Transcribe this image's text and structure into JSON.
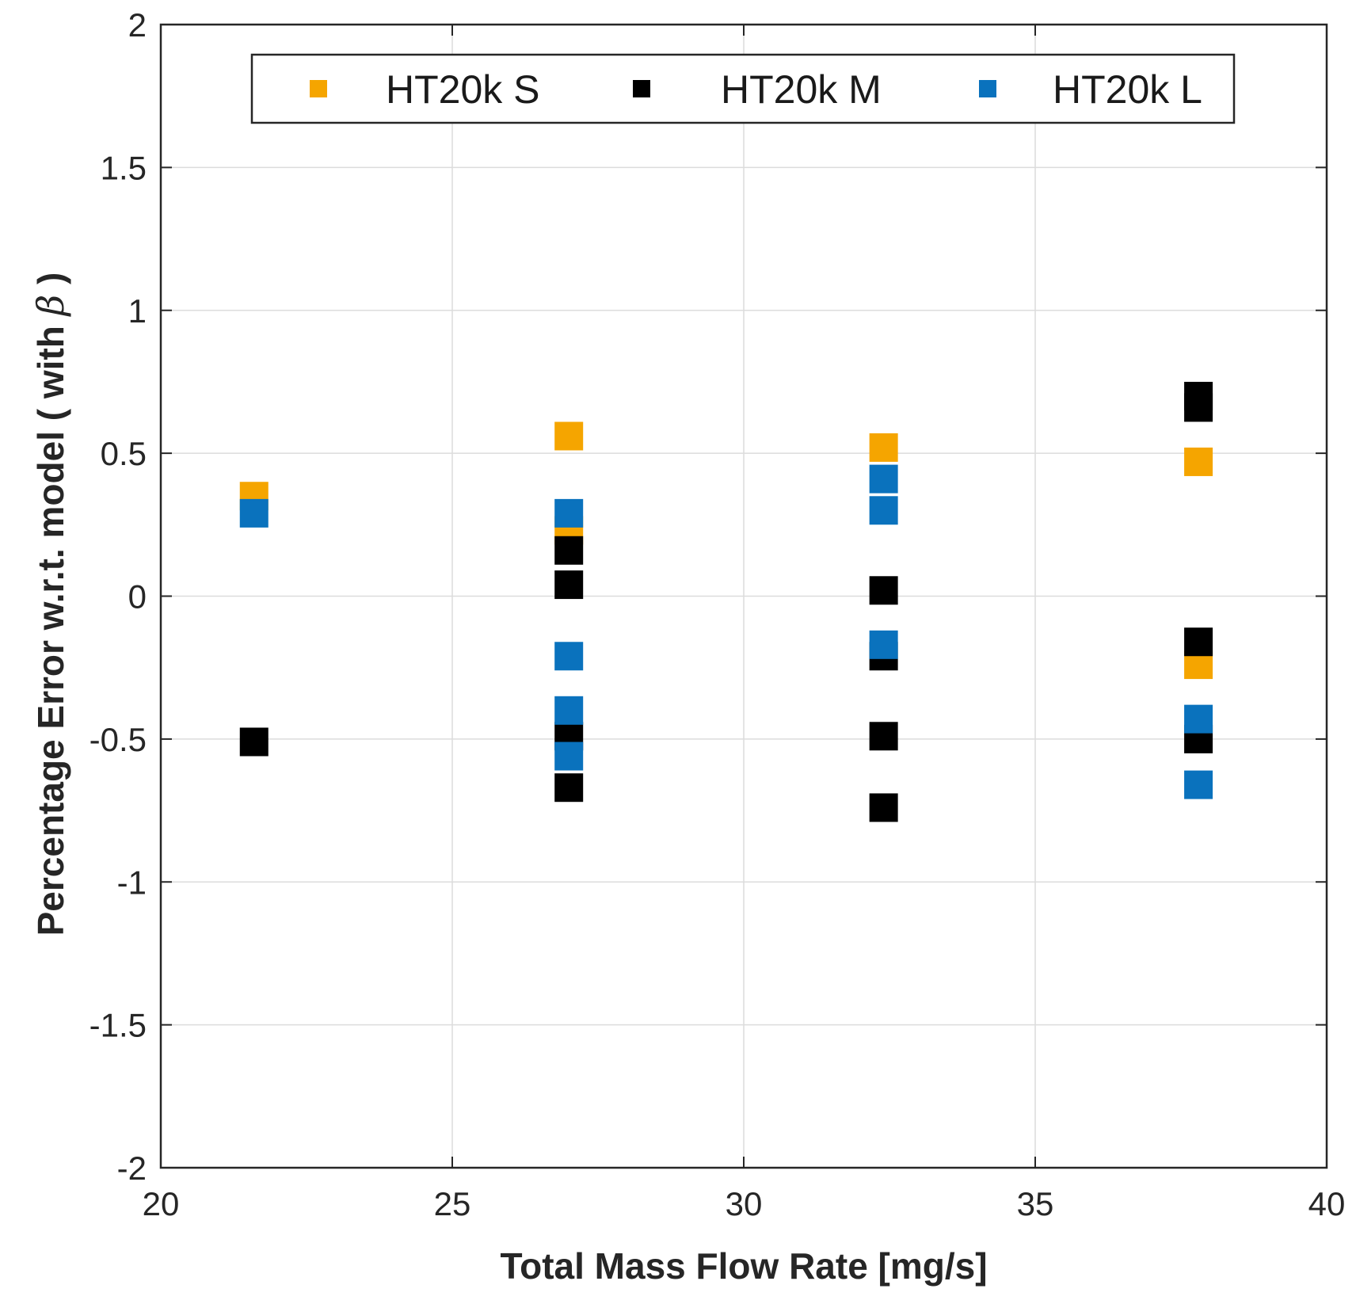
{
  "chart_data": {
    "type": "scatter",
    "xlabel": "Total Mass Flow Rate [mg/s]",
    "ylabel": "Percentage Error w.r.t. model ( with ",
    "ylabel_symbol": "β",
    "ylabel_suffix": " )",
    "xlim": [
      20,
      40
    ],
    "ylim": [
      -2,
      2
    ],
    "x_ticks": [
      20,
      25,
      30,
      35,
      40
    ],
    "y_ticks": [
      -2,
      -1.5,
      -1,
      -0.5,
      0,
      0.5,
      1,
      1.5,
      2
    ],
    "x_tick_labels": [
      "20",
      "25",
      "30",
      "35",
      "40"
    ],
    "y_tick_labels": [
      "-2",
      "-1.5",
      "-1",
      "-0.5",
      "0",
      "0.5",
      "1",
      "1.5",
      "2"
    ],
    "grid": true,
    "legend_position": "top",
    "legend_orientation": "horizontal",
    "series": [
      {
        "name": "HT20k S",
        "color": "#f5a500",
        "marker": "square",
        "points": [
          {
            "x": 21.6,
            "y": 0.35
          },
          {
            "x": 27.0,
            "y": 0.56
          },
          {
            "x": 27.0,
            "y": 0.23
          },
          {
            "x": 32.4,
            "y": 0.52
          },
          {
            "x": 37.8,
            "y": 0.47
          },
          {
            "x": 37.8,
            "y": -0.24
          }
        ]
      },
      {
        "name": "HT20k M",
        "color": "#000000",
        "marker": "square",
        "points": [
          {
            "x": 21.6,
            "y": -0.51
          },
          {
            "x": 27.0,
            "y": 0.16
          },
          {
            "x": 27.0,
            "y": 0.04
          },
          {
            "x": 27.0,
            "y": -0.49
          },
          {
            "x": 27.0,
            "y": -0.67
          },
          {
            "x": 32.4,
            "y": 0.02
          },
          {
            "x": 32.4,
            "y": -0.21
          },
          {
            "x": 32.4,
            "y": -0.49
          },
          {
            "x": 32.4,
            "y": -0.74
          },
          {
            "x": 37.8,
            "y": 0.7
          },
          {
            "x": 37.8,
            "y": 0.66
          },
          {
            "x": 37.8,
            "y": -0.16
          },
          {
            "x": 37.8,
            "y": -0.5
          }
        ]
      },
      {
        "name": "HT20k L",
        "color": "#0a72bd",
        "marker": "square",
        "points": [
          {
            "x": 21.6,
            "y": 0.29
          },
          {
            "x": 27.0,
            "y": 0.29
          },
          {
            "x": 27.0,
            "y": -0.21
          },
          {
            "x": 27.0,
            "y": -0.4
          },
          {
            "x": 27.0,
            "y": -0.56
          },
          {
            "x": 32.4,
            "y": 0.41
          },
          {
            "x": 32.4,
            "y": 0.3
          },
          {
            "x": 32.4,
            "y": -0.17
          },
          {
            "x": 37.8,
            "y": -0.43
          },
          {
            "x": 37.8,
            "y": -0.66
          }
        ]
      }
    ]
  }
}
